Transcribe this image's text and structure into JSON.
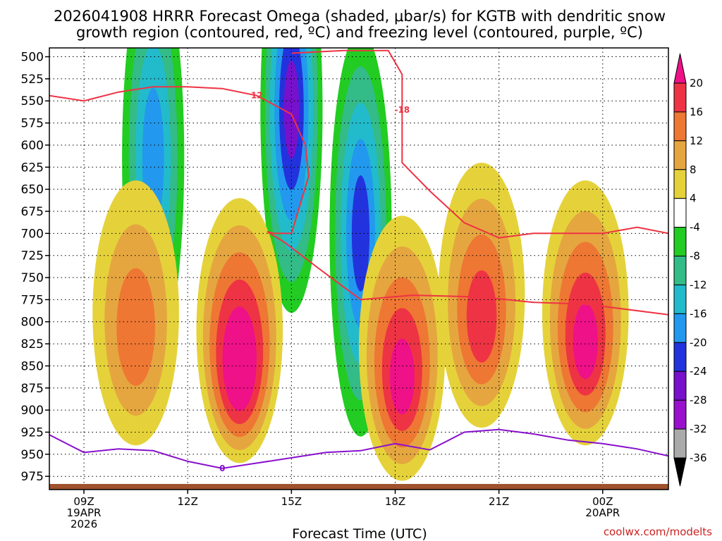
{
  "chart_data": {
    "type": "heatmap",
    "title_line1": "2026041908 HRRR Forecast Omega (shaded, μbar/s) for KGTB with dendritic snow",
    "title_line2": "growth region (contoured, red, ºC) and freezing level (contoured, purple, ºC)",
    "xlabel": "Forecast Time (UTC)",
    "credit": "coolwx.com/modelts",
    "x_range_hours": [
      8,
      25.9
    ],
    "y_range_mb": [
      490,
      990
    ],
    "y_ticks": [
      "500",
      "525",
      "550",
      "575",
      "600",
      "625",
      "650",
      "675",
      "700",
      "725",
      "750",
      "775",
      "800",
      "825",
      "850",
      "875",
      "900",
      "925",
      "950",
      "975"
    ],
    "x_ticks": [
      {
        "hour": 9,
        "label": "09Z",
        "date1": "19APR",
        "date2": "2026"
      },
      {
        "hour": 12,
        "label": "12Z",
        "date1": "",
        "date2": ""
      },
      {
        "hour": 15,
        "label": "15Z",
        "date1": "",
        "date2": ""
      },
      {
        "hour": 18,
        "label": "18Z",
        "date1": "",
        "date2": ""
      },
      {
        "hour": 21,
        "label": "21Z",
        "date1": "",
        "date2": ""
      },
      {
        "hour": 24,
        "label": "00Z",
        "date1": "20APR",
        "date2": ""
      }
    ],
    "colorbar": {
      "labels": [
        "20",
        "16",
        "12",
        "8",
        "4",
        "-4",
        "-8",
        "-12",
        "-16",
        "-20",
        "-24",
        "-28",
        "-32",
        "-36"
      ],
      "colors": [
        "#e8e8e8",
        "#ee1188",
        "#ee3344",
        "#ee7733",
        "#e5a640",
        "#e5d23a",
        "#ffffff",
        "#22cc22",
        "#33bb88",
        "#22bbcc",
        "#2299ee",
        "#2233dd",
        "#7711cc",
        "#9911cc",
        "#aaaaaa",
        "#000000"
      ]
    },
    "omega_features": [
      {
        "name": "updraft-0900",
        "hour": 11.0,
        "mb": 615,
        "value": -18
      },
      {
        "name": "updraft-1500",
        "hour": 15.0,
        "mb": 560,
        "value": -26
      },
      {
        "name": "updraft-1700",
        "hour": 17.0,
        "mb": 700,
        "value": -22
      },
      {
        "name": "sink-1000",
        "hour": 10.5,
        "mb": 790,
        "value": 12
      },
      {
        "name": "sink-1330",
        "hour": 13.5,
        "mb": 810,
        "value": 24
      },
      {
        "name": "sink-1800",
        "hour": 18.2,
        "mb": 830,
        "value": 22
      },
      {
        "name": "sink-2030",
        "hour": 20.5,
        "mb": 770,
        "value": 16
      },
      {
        "name": "sink-2330",
        "hour": 23.5,
        "mb": 790,
        "value": 22
      }
    ],
    "dgz_contours": [
      {
        "label": "12",
        "points": [
          [
            8,
            544
          ],
          [
            9,
            550
          ],
          [
            10,
            540
          ],
          [
            11,
            534
          ],
          [
            12,
            534
          ],
          [
            13,
            536
          ],
          [
            14,
            544
          ],
          [
            15,
            565
          ],
          [
            15.4,
            600
          ],
          [
            15.5,
            635
          ],
          [
            15.0,
            700
          ],
          [
            14.5,
            700
          ],
          [
            14.3,
            698
          ],
          [
            14.8,
            710
          ],
          [
            15.8,
            740
          ],
          [
            17.0,
            775
          ],
          [
            18.5,
            770
          ],
          [
            20.5,
            772
          ],
          [
            22,
            778
          ],
          [
            23.5,
            780
          ],
          [
            25.9,
            792
          ]
        ]
      },
      {
        "label": "-18",
        "points": [
          [
            15.0,
            496
          ],
          [
            16.5,
            493
          ],
          [
            17.8,
            493
          ],
          [
            18.2,
            520
          ],
          [
            18.2,
            560
          ],
          [
            18.2,
            620
          ],
          [
            19.0,
            652
          ],
          [
            20.0,
            688
          ],
          [
            21,
            705
          ],
          [
            22,
            700
          ],
          [
            23,
            700
          ],
          [
            24,
            700
          ],
          [
            25.0,
            693
          ],
          [
            25.9,
            700
          ]
        ]
      }
    ],
    "freezing_level": {
      "label": "0",
      "points": [
        [
          8,
          928
        ],
        [
          9,
          948
        ],
        [
          10,
          944
        ],
        [
          11,
          946
        ],
        [
          12,
          958
        ],
        [
          13,
          966
        ],
        [
          14,
          960
        ],
        [
          15,
          954
        ],
        [
          16,
          948
        ],
        [
          17,
          946
        ],
        [
          18,
          938
        ],
        [
          19,
          945
        ],
        [
          20,
          925
        ],
        [
          21,
          922
        ],
        [
          22,
          927
        ],
        [
          23,
          934
        ],
        [
          24,
          938
        ],
        [
          25,
          944
        ],
        [
          25.9,
          952
        ]
      ]
    }
  }
}
